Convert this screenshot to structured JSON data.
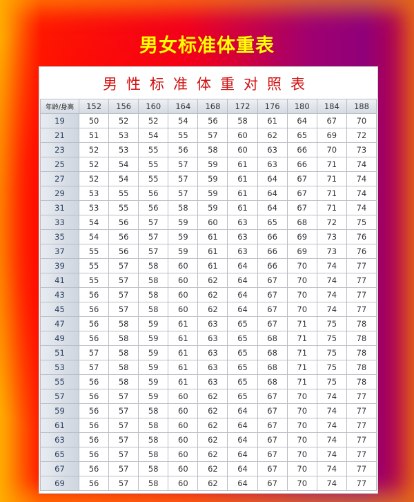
{
  "title": "男女标准体重表",
  "table_title": "男性标准体重对照表",
  "chart_data": {
    "type": "table",
    "corner_label": "年龄/身高",
    "heights": [
      "152",
      "156",
      "160",
      "164",
      "168",
      "172",
      "176",
      "180",
      "184",
      "188"
    ],
    "rows": [
      {
        "age": "19",
        "values": [
          50,
          52,
          52,
          54,
          56,
          58,
          61,
          64,
          67,
          70
        ]
      },
      {
        "age": "21",
        "values": [
          51,
          53,
          54,
          55,
          57,
          60,
          62,
          65,
          69,
          72
        ]
      },
      {
        "age": "23",
        "values": [
          52,
          53,
          55,
          56,
          58,
          60,
          63,
          66,
          70,
          73
        ]
      },
      {
        "age": "25",
        "values": [
          52,
          54,
          55,
          57,
          59,
          61,
          63,
          66,
          71,
          74
        ]
      },
      {
        "age": "27",
        "values": [
          52,
          54,
          55,
          57,
          59,
          61,
          64,
          67,
          71,
          74
        ]
      },
      {
        "age": "29",
        "values": [
          53,
          55,
          56,
          57,
          59,
          61,
          64,
          67,
          71,
          74
        ]
      },
      {
        "age": "31",
        "values": [
          53,
          55,
          56,
          58,
          59,
          61,
          64,
          67,
          71,
          74
        ]
      },
      {
        "age": "33",
        "values": [
          54,
          56,
          57,
          59,
          60,
          63,
          65,
          68,
          72,
          75
        ]
      },
      {
        "age": "35",
        "values": [
          54,
          56,
          57,
          59,
          61,
          63,
          66,
          69,
          73,
          76
        ]
      },
      {
        "age": "37",
        "values": [
          55,
          56,
          57,
          59,
          61,
          63,
          66,
          69,
          73,
          76
        ]
      },
      {
        "age": "39",
        "values": [
          55,
          57,
          58,
          60,
          61,
          64,
          66,
          70,
          74,
          77
        ]
      },
      {
        "age": "41",
        "values": [
          55,
          57,
          58,
          60,
          62,
          64,
          67,
          70,
          74,
          77
        ]
      },
      {
        "age": "43",
        "values": [
          56,
          57,
          58,
          60,
          62,
          64,
          67,
          70,
          74,
          77
        ]
      },
      {
        "age": "45",
        "values": [
          56,
          57,
          58,
          60,
          62,
          64,
          67,
          70,
          74,
          77
        ]
      },
      {
        "age": "47",
        "values": [
          56,
          58,
          59,
          61,
          63,
          65,
          67,
          71,
          75,
          78
        ]
      },
      {
        "age": "49",
        "values": [
          56,
          58,
          59,
          61,
          63,
          65,
          68,
          71,
          75,
          78
        ]
      },
      {
        "age": "51",
        "values": [
          57,
          58,
          59,
          61,
          63,
          65,
          68,
          71,
          75,
          78
        ]
      },
      {
        "age": "53",
        "values": [
          57,
          58,
          59,
          61,
          63,
          65,
          68,
          71,
          75,
          78
        ]
      },
      {
        "age": "55",
        "values": [
          56,
          58,
          59,
          61,
          63,
          65,
          68,
          71,
          75,
          78
        ]
      },
      {
        "age": "57",
        "values": [
          56,
          57,
          59,
          60,
          62,
          65,
          67,
          70,
          74,
          77
        ]
      },
      {
        "age": "59",
        "values": [
          56,
          57,
          58,
          60,
          62,
          64,
          67,
          70,
          74,
          77
        ]
      },
      {
        "age": "61",
        "values": [
          56,
          57,
          58,
          60,
          62,
          64,
          67,
          70,
          74,
          77
        ]
      },
      {
        "age": "63",
        "values": [
          56,
          57,
          58,
          60,
          62,
          64,
          67,
          70,
          74,
          77
        ]
      },
      {
        "age": "65",
        "values": [
          56,
          57,
          58,
          60,
          62,
          64,
          67,
          70,
          74,
          77
        ]
      },
      {
        "age": "67",
        "values": [
          56,
          57,
          58,
          60,
          62,
          64,
          67,
          70,
          74,
          77
        ]
      },
      {
        "age": "69",
        "values": [
          56,
          57,
          58,
          60,
          62,
          64,
          67,
          70,
          74,
          77
        ]
      }
    ]
  }
}
